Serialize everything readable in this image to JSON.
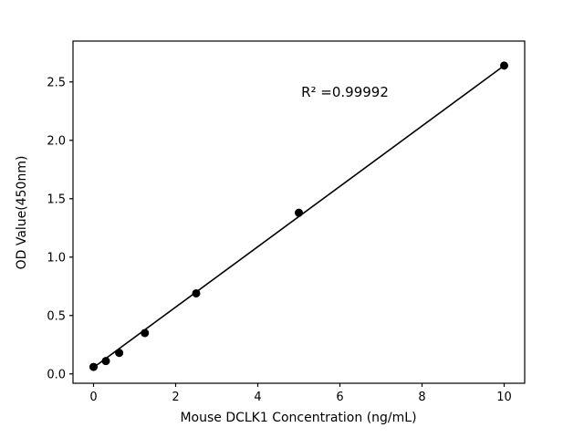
{
  "figure": {
    "background": "#ffffff"
  },
  "chart_data": {
    "type": "scatter",
    "title": "",
    "xlabel": "Mouse DCLK1 Concentration (ng/mL)",
    "ylabel": "OD Value(450nm)",
    "annotation": "R² =0.99992",
    "x": [
      0,
      0.3,
      0.625,
      1.25,
      2.5,
      5,
      10
    ],
    "y": [
      0.06,
      0.11,
      0.18,
      0.35,
      0.69,
      1.38,
      2.64
    ],
    "fit_line": {
      "x": [
        0,
        10
      ],
      "y": [
        0.055,
        2.64
      ]
    },
    "xlim": [
      -0.5,
      10.5
    ],
    "ylim": [
      -0.08,
      2.85
    ],
    "xticks": [
      0,
      2,
      4,
      6,
      8,
      10
    ],
    "yticks": [
      0.0,
      0.5,
      1.0,
      1.5,
      2.0,
      2.5
    ],
    "marker_color": "#000000",
    "line_color": "#000000",
    "grid": false,
    "legend": "none"
  }
}
